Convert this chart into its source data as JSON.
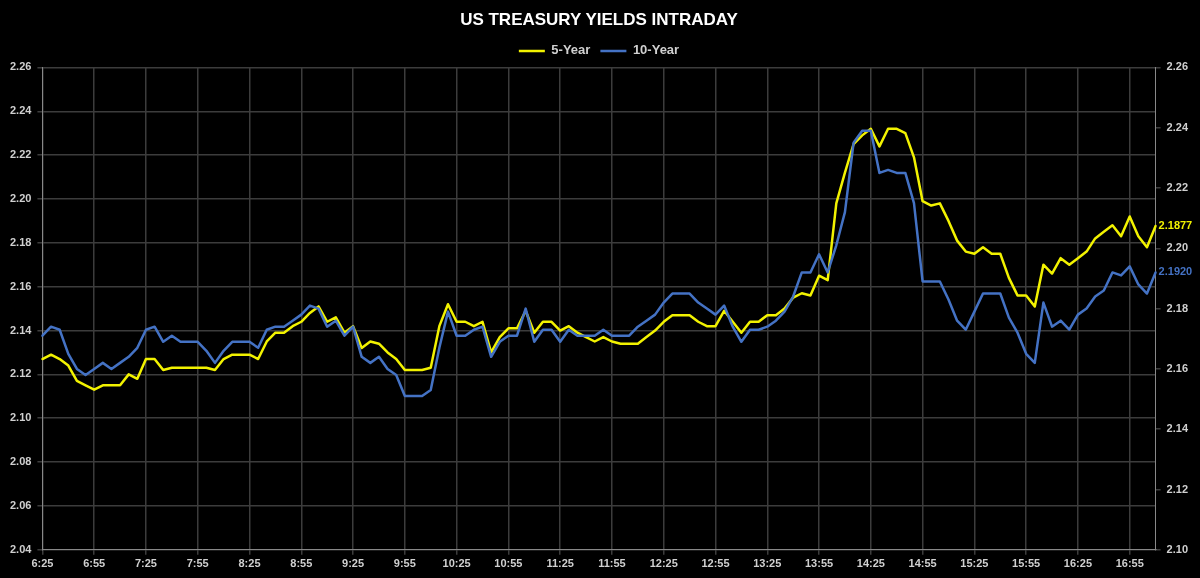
{
  "chart_data": {
    "type": "line",
    "title": "US TREASURY YIELDS INTRADAY",
    "categories": [
      "6:25",
      null,
      null,
      null,
      null,
      null,
      "6:55",
      null,
      null,
      null,
      null,
      null,
      "7:25",
      null,
      null,
      null,
      null,
      null,
      "7:55",
      null,
      null,
      null,
      null,
      null,
      "8:25",
      null,
      null,
      null,
      null,
      null,
      "8:55",
      null,
      null,
      null,
      null,
      null,
      "9:25",
      null,
      null,
      null,
      null,
      null,
      "9:55",
      null,
      null,
      null,
      null,
      null,
      "10:25",
      null,
      null,
      null,
      null,
      null,
      "10:55",
      null,
      null,
      null,
      null,
      null,
      "11:25",
      null,
      null,
      null,
      null,
      null,
      "11:55",
      null,
      null,
      null,
      null,
      null,
      "12:25",
      null,
      null,
      null,
      null,
      null,
      "12:55",
      null,
      null,
      null,
      null,
      null,
      "13:25",
      null,
      null,
      null,
      null,
      null,
      "13:55",
      null,
      null,
      null,
      null,
      null,
      "14:25",
      null,
      null,
      null,
      null,
      null,
      "14:55",
      null,
      null,
      null,
      null,
      null,
      "15:25",
      null,
      null,
      null,
      null,
      null,
      "15:55",
      null,
      null,
      null,
      null,
      null,
      "16:25",
      null,
      null,
      null,
      null,
      null,
      "16:55",
      null,
      null,
      null
    ],
    "series": [
      {
        "name": "5-Year",
        "color": "#f2f200",
        "values": [
          2.127,
          2.129,
          2.127,
          2.124,
          2.117,
          2.115,
          2.113,
          2.115,
          2.115,
          2.115,
          2.12,
          2.118,
          2.127,
          2.127,
          2.122,
          2.123,
          2.123,
          2.123,
          2.123,
          2.123,
          2.122,
          2.127,
          2.129,
          2.129,
          2.129,
          2.127,
          2.135,
          2.139,
          2.139,
          2.142,
          2.144,
          2.148,
          2.151,
          2.144,
          2.146,
          2.139,
          2.142,
          2.132,
          2.135,
          2.134,
          2.13,
          2.127,
          2.122,
          2.122,
          2.122,
          2.123,
          2.142,
          2.152,
          2.144,
          2.144,
          2.142,
          2.144,
          2.13,
          2.137,
          2.141,
          2.141,
          2.149,
          2.139,
          2.144,
          2.144,
          2.14,
          2.142,
          2.139,
          2.137,
          2.135,
          2.137,
          2.135,
          2.134,
          2.134,
          2.134,
          2.137,
          2.14,
          2.144,
          2.147,
          2.147,
          2.147,
          2.144,
          2.142,
          2.142,
          2.149,
          2.144,
          2.139,
          2.144,
          2.144,
          2.147,
          2.147,
          2.15,
          2.155,
          2.157,
          2.156,
          2.165,
          2.163,
          2.198,
          2.212,
          2.225,
          2.229,
          2.232,
          2.224,
          2.232,
          2.232,
          2.23,
          2.219,
          2.199,
          2.197,
          2.198,
          2.19,
          2.181,
          2.176,
          2.175,
          2.178,
          2.175,
          2.175,
          2.164,
          2.156,
          2.156,
          2.151,
          2.17,
          2.166,
          2.173,
          2.17,
          2.173,
          2.176,
          2.182,
          2.185,
          2.188,
          2.183,
          2.192,
          2.183,
          2.178,
          2.1877
        ]
      },
      {
        "name": "10-Year",
        "color": "#4472c4",
        "axis": "y2",
        "values": [
          2.171,
          2.174,
          2.173,
          2.165,
          2.16,
          2.158,
          2.16,
          2.162,
          2.16,
          2.162,
          2.164,
          2.167,
          2.173,
          2.174,
          2.169,
          2.171,
          2.169,
          2.169,
          2.169,
          2.166,
          2.162,
          2.166,
          2.169,
          2.169,
          2.169,
          2.167,
          2.173,
          2.174,
          2.174,
          2.176,
          2.178,
          2.181,
          2.18,
          2.174,
          2.176,
          2.171,
          2.174,
          2.164,
          2.162,
          2.164,
          2.16,
          2.158,
          2.151,
          2.151,
          2.151,
          2.153,
          2.167,
          2.179,
          2.171,
          2.171,
          2.173,
          2.174,
          2.164,
          2.169,
          2.171,
          2.171,
          2.18,
          2.169,
          2.173,
          2.173,
          2.169,
          2.173,
          2.171,
          2.171,
          2.171,
          2.173,
          2.171,
          2.171,
          2.171,
          2.174,
          2.176,
          2.178,
          2.182,
          2.185,
          2.185,
          2.185,
          2.182,
          2.18,
          2.178,
          2.181,
          2.174,
          2.169,
          2.173,
          2.173,
          2.174,
          2.176,
          2.179,
          2.184,
          2.192,
          2.192,
          2.198,
          2.192,
          2.201,
          2.212,
          2.235,
          2.239,
          2.239,
          2.225,
          2.226,
          2.225,
          2.225,
          2.215,
          2.189,
          2.189,
          2.189,
          2.183,
          2.176,
          2.173,
          2.179,
          2.185,
          2.185,
          2.185,
          2.177,
          2.172,
          2.165,
          2.162,
          2.182,
          2.174,
          2.176,
          2.173,
          2.178,
          2.18,
          2.184,
          2.186,
          2.192,
          2.191,
          2.194,
          2.188,
          2.185,
          2.192
        ]
      }
    ],
    "ylim": [
      2.04,
      2.26
    ],
    "yticks": [
      2.04,
      2.06,
      2.08,
      {
        "value": 2.1,
        "label": "2.10"
      },
      2.12,
      2.14,
      2.16,
      2.18,
      {
        "value": 2.2,
        "label": "2.20"
      },
      2.22,
      2.24,
      2.26
    ],
    "y2lim": [
      2.1,
      2.26
    ],
    "y2ticks": [
      {
        "value": 2.1,
        "label": "2.10"
      },
      2.12,
      2.14,
      2.16,
      2.18,
      {
        "value": 2.2,
        "label": "2.20"
      },
      2.22,
      2.24,
      2.26
    ],
    "annotations": [
      "2.1877",
      "2.1920"
    ],
    "grid": true,
    "legend": "top",
    "marker": "none",
    "line_style": "solid"
  }
}
